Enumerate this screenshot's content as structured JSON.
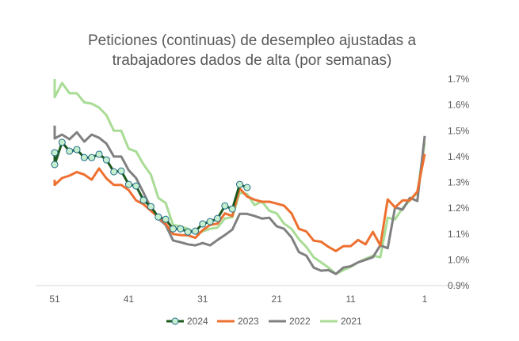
{
  "chart_data": {
    "type": "line",
    "title_lines": [
      "Peticiones (continuas) de desempleo ajustadas  a",
      "trabajadores dados de alta (por semanas)"
    ],
    "xlabel": "",
    "ylabel": "",
    "x_axis": {
      "reversed": true,
      "range": [
        51,
        1
      ],
      "ticks": [
        51,
        41,
        31,
        21,
        11,
        1
      ]
    },
    "y_axis": {
      "position": "right",
      "range": [
        0.9,
        1.7
      ],
      "ticks": [
        0.9,
        1.0,
        1.1,
        1.2,
        1.3,
        1.4,
        1.5,
        1.6,
        1.7
      ],
      "tick_labels": [
        "0.9%",
        "1.0%",
        "1.1%",
        "1.2%",
        "1.3%",
        "1.4%",
        "1.5%",
        "1.6%",
        "1.7%"
      ]
    },
    "grid": false,
    "legend_position": "bottom",
    "series": [
      {
        "name": "2024",
        "color": "#1e5a1e",
        "marker_fill": "#c6efce",
        "marker_stroke": "#1f6b8a",
        "markers": true,
        "x": [
          51,
          51,
          50,
          49,
          48,
          47,
          46,
          45,
          44,
          43,
          42,
          41,
          40,
          39,
          38,
          37,
          36,
          35,
          34,
          33,
          32,
          31,
          30,
          29,
          28,
          27,
          26,
          25
        ],
        "values": [
          1.415,
          1.369,
          1.455,
          1.421,
          1.427,
          1.396,
          1.396,
          1.409,
          1.387,
          1.341,
          1.344,
          1.292,
          1.286,
          1.231,
          1.206,
          1.166,
          1.157,
          1.12,
          1.12,
          1.108,
          1.111,
          1.139,
          1.148,
          1.16,
          1.209,
          1.197,
          1.292,
          1.28
        ]
      },
      {
        "name": "2023",
        "color": "#ed7030",
        "markers": false,
        "x": [
          51,
          51,
          50,
          49,
          48,
          47,
          46,
          45,
          44,
          43,
          42,
          41,
          40,
          39,
          38,
          37,
          36,
          35,
          34,
          33,
          32,
          31,
          30,
          29,
          28,
          27,
          26,
          25,
          24,
          23,
          22,
          21,
          20,
          19,
          18,
          17,
          16,
          15,
          14,
          13,
          12,
          11,
          10,
          9,
          8,
          7,
          6,
          5,
          4,
          3,
          2,
          1
        ],
        "values": [
          1.31,
          1.29,
          1.317,
          1.326,
          1.34,
          1.33,
          1.31,
          1.354,
          1.315,
          1.29,
          1.29,
          1.27,
          1.23,
          1.215,
          1.19,
          1.165,
          1.14,
          1.1,
          1.096,
          1.095,
          1.085,
          1.115,
          1.135,
          1.14,
          1.18,
          1.17,
          1.277,
          1.245,
          1.233,
          1.225,
          1.225,
          1.218,
          1.21,
          1.18,
          1.12,
          1.11,
          1.074,
          1.07,
          1.05,
          1.034,
          1.053,
          1.053,
          1.077,
          1.06,
          1.108,
          1.056,
          1.234,
          1.203,
          1.23,
          1.23,
          1.264,
          1.41
        ]
      },
      {
        "name": "2022",
        "color": "#808080",
        "markers": false,
        "x": [
          51,
          51,
          50,
          49,
          48,
          47,
          46,
          45,
          44,
          43,
          42,
          41,
          40,
          39,
          38,
          37,
          36,
          35,
          34,
          33,
          32,
          31,
          30,
          29,
          28,
          27,
          26,
          25,
          24,
          23,
          22,
          21,
          20,
          19,
          18,
          17,
          16,
          15,
          14,
          13,
          12,
          11,
          10,
          9,
          8,
          7,
          6,
          5,
          4,
          3,
          2,
          1
        ],
        "values": [
          1.52,
          1.47,
          1.485,
          1.467,
          1.494,
          1.458,
          1.485,
          1.473,
          1.45,
          1.4,
          1.4,
          1.347,
          1.317,
          1.26,
          1.2,
          1.16,
          1.135,
          1.075,
          1.068,
          1.06,
          1.056,
          1.065,
          1.056,
          1.077,
          1.096,
          1.117,
          1.178,
          1.178,
          1.17,
          1.16,
          1.163,
          1.13,
          1.12,
          1.087,
          1.03,
          1.016,
          0.97,
          0.958,
          0.96,
          0.945,
          0.97,
          0.975,
          0.99,
          1.0,
          1.01,
          1.056,
          1.045,
          1.203,
          1.194,
          1.24,
          1.228,
          1.48
        ]
      },
      {
        "name": "2021",
        "color": "#a9dc95",
        "markers": false,
        "x": [
          51,
          51,
          50,
          49,
          48,
          47,
          46,
          45,
          44,
          43,
          42,
          41,
          40,
          39,
          38,
          37,
          36,
          35,
          34,
          33,
          32,
          31,
          30,
          29,
          28,
          27,
          26,
          25,
          24,
          23,
          22,
          21,
          20,
          19,
          18,
          17,
          16,
          15,
          14,
          13,
          12,
          11,
          10,
          9,
          8,
          7,
          6,
          5,
          4,
          3,
          2,
          1
        ],
        "values": [
          1.7,
          1.63,
          1.685,
          1.645,
          1.645,
          1.61,
          1.605,
          1.59,
          1.56,
          1.5,
          1.5,
          1.43,
          1.42,
          1.37,
          1.33,
          1.24,
          1.22,
          1.135,
          1.13,
          1.12,
          1.105,
          1.11,
          1.12,
          1.125,
          1.16,
          1.165,
          1.26,
          1.255,
          1.212,
          1.226,
          1.19,
          1.18,
          1.14,
          1.12,
          1.08,
          1.05,
          1.01,
          0.99,
          0.97,
          0.945,
          0.96,
          0.973,
          0.99,
          1.004,
          1.016,
          1.01,
          1.163,
          1.157,
          1.2,
          1.23,
          1.26,
          1.455
        ]
      }
    ]
  }
}
